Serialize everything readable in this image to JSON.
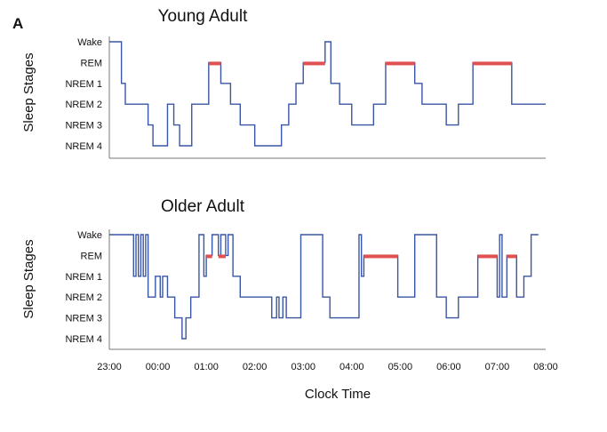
{
  "panel_label": "A",
  "x_axis_label": "Clock Time",
  "x_ticks": [
    "23:00",
    "00:00",
    "01:00",
    "02:00",
    "03:00",
    "04:00",
    "05:00",
    "06:00",
    "07:00",
    "08:00"
  ],
  "stage_labels": [
    "Wake",
    "REM",
    "NREM 1",
    "NREM 2",
    "NREM 3",
    "NREM 4"
  ],
  "colors": {
    "hypnogram": "#3a55a4",
    "rem_bar": "#e05252",
    "axis": "#777777"
  },
  "chart_data": [
    {
      "type": "line",
      "title": "Young Adult",
      "ylabel": "Sleep Stages",
      "xlabel": "",
      "xlim_hours": [
        23,
        32
      ],
      "x_unit": "clock hours (23 = 23:00, 24 = 00:00, 32 = 08:00)",
      "y_categories": [
        "Wake",
        "REM",
        "NREM 1",
        "NREM 2",
        "NREM 3",
        "NREM 4"
      ],
      "series": [
        {
          "steps": [
            [
              23.0,
              "Wake"
            ],
            [
              23.25,
              "NREM 1"
            ],
            [
              23.33,
              "NREM 2"
            ],
            [
              23.8,
              "NREM 3"
            ],
            [
              23.9,
              "NREM 4"
            ],
            [
              24.2,
              "NREM 2"
            ],
            [
              24.33,
              "NREM 3"
            ],
            [
              24.45,
              "NREM 4"
            ],
            [
              24.7,
              "NREM 2"
            ],
            [
              25.05,
              "REM"
            ],
            [
              25.3,
              "NREM 1"
            ],
            [
              25.5,
              "NREM 2"
            ],
            [
              25.7,
              "NREM 3"
            ],
            [
              26.0,
              "NREM 4"
            ],
            [
              26.55,
              "NREM 3"
            ],
            [
              26.7,
              "NREM 2"
            ],
            [
              26.85,
              "NREM 1"
            ],
            [
              27.0,
              "REM"
            ],
            [
              27.45,
              "Wake"
            ],
            [
              27.57,
              "NREM 1"
            ],
            [
              27.75,
              "NREM 2"
            ],
            [
              28.0,
              "NREM 3"
            ],
            [
              28.45,
              "NREM 2"
            ],
            [
              28.7,
              "REM"
            ],
            [
              29.3,
              "NREM 1"
            ],
            [
              29.45,
              "NREM 2"
            ],
            [
              29.95,
              "NREM 3"
            ],
            [
              30.2,
              "NREM 2"
            ],
            [
              30.5,
              "REM"
            ],
            [
              31.3,
              "NREM 2"
            ],
            [
              32.0,
              "NREM 2"
            ]
          ]
        }
      ],
      "rem_periods": [
        [
          25.05,
          25.3
        ],
        [
          27.0,
          27.45
        ],
        [
          28.7,
          29.3
        ],
        [
          30.5,
          31.3
        ]
      ]
    },
    {
      "type": "line",
      "title": "Older Adult",
      "ylabel": "Sleep Stages",
      "xlabel": "Clock Time",
      "xlim_hours": [
        23,
        32
      ],
      "x_unit": "clock hours (23 = 23:00, 24 = 00:00, 32 = 08:00)",
      "y_categories": [
        "Wake",
        "REM",
        "NREM 1",
        "NREM 2",
        "NREM 3",
        "NREM 4"
      ],
      "series": [
        {
          "steps": [
            [
              23.0,
              "Wake"
            ],
            [
              23.5,
              "NREM 1"
            ],
            [
              23.55,
              "Wake"
            ],
            [
              23.6,
              "NREM 1"
            ],
            [
              23.65,
              "Wake"
            ],
            [
              23.7,
              "NREM 1"
            ],
            [
              23.75,
              "Wake"
            ],
            [
              23.8,
              "NREM 2"
            ],
            [
              23.95,
              "NREM 1"
            ],
            [
              24.05,
              "NREM 2"
            ],
            [
              24.1,
              "NREM 1"
            ],
            [
              24.2,
              "NREM 2"
            ],
            [
              24.35,
              "NREM 3"
            ],
            [
              24.5,
              "NREM 4"
            ],
            [
              24.58,
              "NREM 3"
            ],
            [
              24.68,
              "NREM 2"
            ],
            [
              24.85,
              "Wake"
            ],
            [
              24.95,
              "NREM 1"
            ],
            [
              25.0,
              "REM"
            ],
            [
              25.12,
              "Wake"
            ],
            [
              25.25,
              "REM"
            ],
            [
              25.3,
              "Wake"
            ],
            [
              25.4,
              "REM"
            ],
            [
              25.45,
              "Wake"
            ],
            [
              25.55,
              "NREM 1"
            ],
            [
              25.7,
              "NREM 2"
            ],
            [
              26.35,
              "NREM 3"
            ],
            [
              26.45,
              "NREM 2"
            ],
            [
              26.5,
              "NREM 3"
            ],
            [
              26.58,
              "NREM 2"
            ],
            [
              26.65,
              "NREM 3"
            ],
            [
              26.95,
              "Wake"
            ],
            [
              27.4,
              "NREM 2"
            ],
            [
              27.55,
              "NREM 3"
            ],
            [
              28.15,
              "Wake"
            ],
            [
              28.2,
              "NREM 1"
            ],
            [
              28.25,
              "REM"
            ],
            [
              28.95,
              "NREM 2"
            ],
            [
              29.3,
              "Wake"
            ],
            [
              29.75,
              "NREM 2"
            ],
            [
              29.95,
              "NREM 3"
            ],
            [
              30.2,
              "NREM 2"
            ],
            [
              30.6,
              "REM"
            ],
            [
              31.0,
              "NREM 2"
            ],
            [
              31.05,
              "Wake"
            ],
            [
              31.1,
              "NREM 2"
            ],
            [
              31.2,
              "REM"
            ],
            [
              31.4,
              "NREM 2"
            ],
            [
              31.55,
              "NREM 1"
            ],
            [
              31.7,
              "Wake"
            ],
            [
              31.85,
              "Wake"
            ]
          ]
        }
      ],
      "rem_periods": [
        [
          25.0,
          25.12
        ],
        [
          25.25,
          25.4
        ],
        [
          28.25,
          28.95
        ],
        [
          30.6,
          31.0
        ],
        [
          31.2,
          31.4
        ]
      ]
    }
  ]
}
